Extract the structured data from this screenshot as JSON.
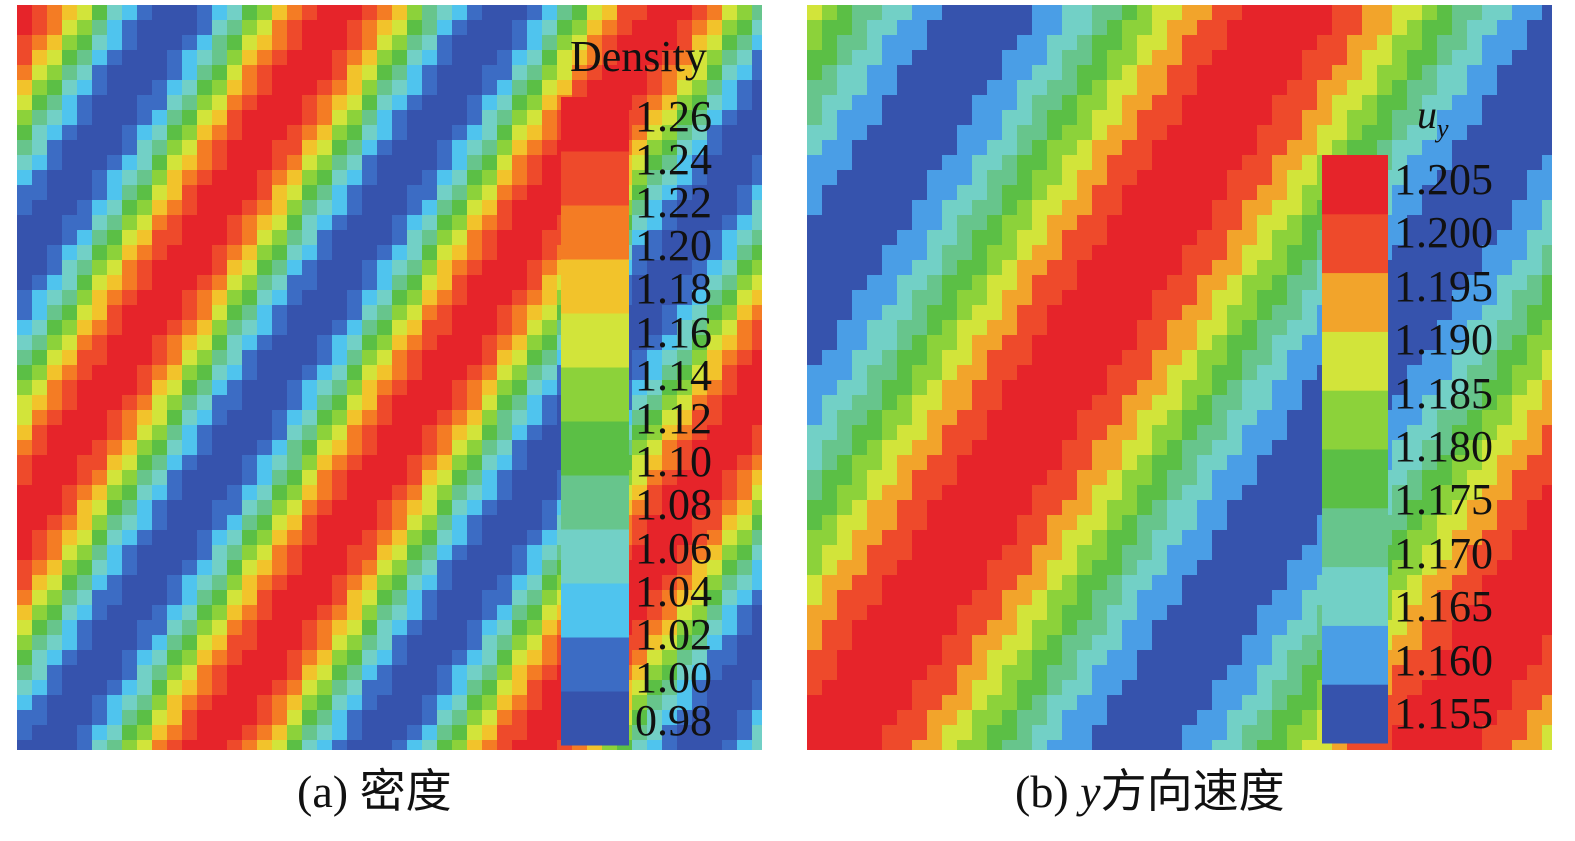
{
  "chart_data": [
    {
      "type": "heatmap",
      "panel_label": "(a)",
      "caption": "密度",
      "colorbar_title": "Density",
      "colorbar_ticks": [
        "1.26",
        "1.24",
        "1.22",
        "1.20",
        "1.18",
        "1.16",
        "1.14",
        "1.12",
        "1.10",
        "1.08",
        "1.06",
        "1.04",
        "1.02",
        "1.00",
        "0.98"
      ],
      "value_range": [
        0.97,
        1.27
      ],
      "field": {
        "kind": "diagonal-sinusoid",
        "min": 0.98,
        "max": 1.26,
        "bands_per_diagonal": 2.3,
        "phase": 0.0
      },
      "colormap": [
        "#3653ad",
        "#3c6cc4",
        "#4fc4ee",
        "#72d0c6",
        "#67c58c",
        "#5bbf45",
        "#8cd23a",
        "#d2e43a",
        "#f2c32b",
        "#f47c24",
        "#ee4a2b",
        "#e6242a"
      ]
    },
    {
      "type": "heatmap",
      "panel_label": "(b)",
      "caption_var": "y",
      "caption": "方向速度",
      "colorbar_title_var": "u",
      "colorbar_title_sub": "y",
      "colorbar_ticks": [
        "1.205",
        "1.200",
        "1.195",
        "1.190",
        "1.185",
        "1.180",
        "1.175",
        "1.170",
        "1.165",
        "1.160",
        "1.155"
      ],
      "value_range": [
        1.1525,
        1.2075
      ],
      "field": {
        "kind": "diagonal-sinusoid",
        "min": 1.155,
        "max": 1.205,
        "bands_per_diagonal": 1.25,
        "phase": 1.2
      },
      "colormap": [
        "#3653ad",
        "#4a9ee6",
        "#72d0c6",
        "#67c58c",
        "#5bbf45",
        "#8cd23a",
        "#d2e43a",
        "#f2a42b",
        "#ee4a2b",
        "#e6242a"
      ]
    }
  ]
}
